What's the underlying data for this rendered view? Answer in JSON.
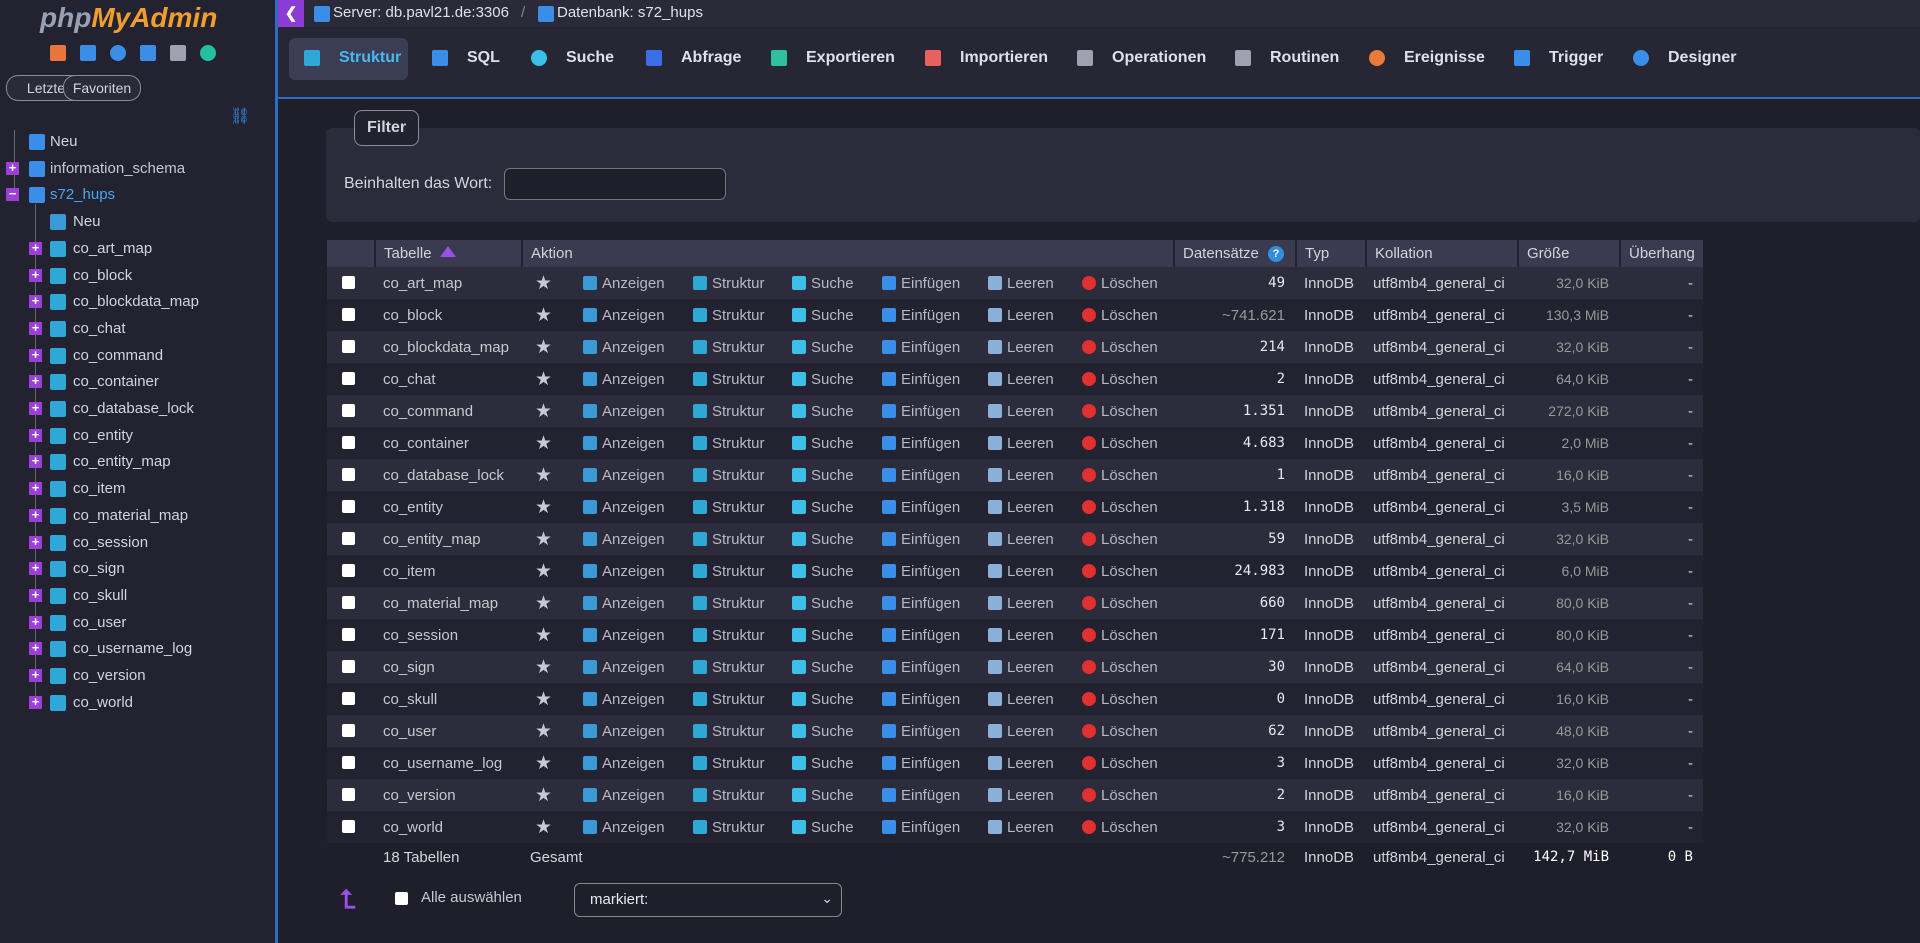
{
  "sidebar": {
    "logo": {
      "php": "php",
      "myadmin": "MyAdmin"
    },
    "buttons": [
      "Letzte",
      "Favoriten"
    ],
    "new": "Neu",
    "databases": [
      "information_schema",
      "s72_hups"
    ],
    "db_new": "Neu"
  },
  "breadcrumb": {
    "server": "Server: db.pavl21.de:3306",
    "separator": "/",
    "database": "Datenbank: s72_hups"
  },
  "tabs": [
    "Struktur",
    "SQL",
    "Suche",
    "Abfrage",
    "Exportieren",
    "Importieren",
    "Operationen",
    "Routinen",
    "Ereignisse",
    "Trigger",
    "Designer"
  ],
  "filter": {
    "legend": "Filter",
    "label": "Beinhalten das Wort:"
  },
  "table": {
    "headers": [
      "Tabelle",
      "Aktion",
      "Datensätze",
      "Typ",
      "Kollation",
      "Größe",
      "Überhang"
    ],
    "actions": [
      "Anzeigen",
      "Struktur",
      "Suche",
      "Einfügen",
      "Leeren",
      "Löschen"
    ],
    "rows": [
      [
        "co_art_map",
        "49",
        "InnoDB",
        "utf8mb4_general_ci",
        "32,0 KiB",
        "-"
      ],
      [
        "co_block",
        "~741.621",
        "InnoDB",
        "utf8mb4_general_ci",
        "130,3 MiB",
        "-"
      ],
      [
        "co_blockdata_map",
        "214",
        "InnoDB",
        "utf8mb4_general_ci",
        "32,0 KiB",
        "-"
      ],
      [
        "co_chat",
        "2",
        "InnoDB",
        "utf8mb4_general_ci",
        "64,0 KiB",
        "-"
      ],
      [
        "co_command",
        "1.351",
        "InnoDB",
        "utf8mb4_general_ci",
        "272,0 KiB",
        "-"
      ],
      [
        "co_container",
        "4.683",
        "InnoDB",
        "utf8mb4_general_ci",
        "2,0 MiB",
        "-"
      ],
      [
        "co_database_lock",
        "1",
        "InnoDB",
        "utf8mb4_general_ci",
        "16,0 KiB",
        "-"
      ],
      [
        "co_entity",
        "1.318",
        "InnoDB",
        "utf8mb4_general_ci",
        "3,5 MiB",
        "-"
      ],
      [
        "co_entity_map",
        "59",
        "InnoDB",
        "utf8mb4_general_ci",
        "32,0 KiB",
        "-"
      ],
      [
        "co_item",
        "24.983",
        "InnoDB",
        "utf8mb4_general_ci",
        "6,0 MiB",
        "-"
      ],
      [
        "co_material_map",
        "660",
        "InnoDB",
        "utf8mb4_general_ci",
        "80,0 KiB",
        "-"
      ],
      [
        "co_session",
        "171",
        "InnoDB",
        "utf8mb4_general_ci",
        "80,0 KiB",
        "-"
      ],
      [
        "co_sign",
        "30",
        "InnoDB",
        "utf8mb4_general_ci",
        "64,0 KiB",
        "-"
      ],
      [
        "co_skull",
        "0",
        "InnoDB",
        "utf8mb4_general_ci",
        "16,0 KiB",
        "-"
      ],
      [
        "co_user",
        "62",
        "InnoDB",
        "utf8mb4_general_ci",
        "48,0 KiB",
        "-"
      ],
      [
        "co_username_log",
        "3",
        "InnoDB",
        "utf8mb4_general_ci",
        "32,0 KiB",
        "-"
      ],
      [
        "co_version",
        "2",
        "InnoDB",
        "utf8mb4_general_ci",
        "16,0 KiB",
        "-"
      ],
      [
        "co_world",
        "3",
        "InnoDB",
        "utf8mb4_general_ci",
        "32,0 KiB",
        "-"
      ]
    ],
    "footer": [
      "18 Tabellen",
      "Gesamt",
      "~775.212",
      "InnoDB",
      "utf8mb4_general_ci",
      "142,7 MiB",
      "0 B"
    ]
  },
  "bottom": {
    "check_all": "Alle auswählen",
    "with_selected": "markiert:"
  }
}
